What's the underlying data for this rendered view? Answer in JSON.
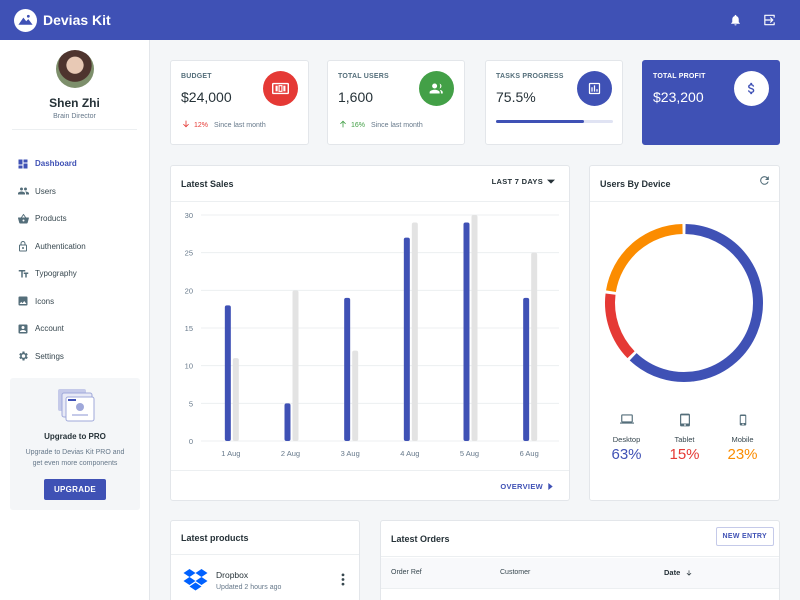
{
  "app": {
    "name": "Devias Kit"
  },
  "profile": {
    "name": "Shen Zhi",
    "role": "Brain Director"
  },
  "nav": [
    {
      "label": "Dashboard",
      "icon": "dashboard-icon",
      "active": true
    },
    {
      "label": "Users",
      "icon": "users-icon"
    },
    {
      "label": "Products",
      "icon": "basket-icon"
    },
    {
      "label": "Authentication",
      "icon": "lock-icon"
    },
    {
      "label": "Typography",
      "icon": "text-format-icon"
    },
    {
      "label": "Icons",
      "icon": "image-icon"
    },
    {
      "label": "Account",
      "icon": "account-box-icon"
    },
    {
      "label": "Settings",
      "icon": "gear-icon"
    }
  ],
  "upgrade": {
    "title": "Upgrade to PRO",
    "text": "Upgrade to Devias Kit PRO and get even more components",
    "button": "UPGRADE"
  },
  "kpis": {
    "budget": {
      "title": "BUDGET",
      "value": "$24,000",
      "diff": "12%",
      "caption": "Since last month",
      "color": "#e53935"
    },
    "users": {
      "title": "TOTAL USERS",
      "value": "1,600",
      "diff": "16%",
      "caption": "Since last month",
      "color": "#43a047"
    },
    "tasks": {
      "title": "TASKS PROGRESS",
      "value": "75.5%",
      "progress": 75.5,
      "color": "#3f51b5"
    },
    "profit": {
      "title": "TOTAL PROFIT",
      "value": "$23,200"
    }
  },
  "latest_sales": {
    "title": "Latest Sales",
    "range_label": "LAST 7 DAYS",
    "overview_label": "OVERVIEW"
  },
  "users_by_device": {
    "title": "Users By Device",
    "devices": [
      {
        "name": "Desktop",
        "value": "63%",
        "color": "#3f51b5",
        "icon": "laptop-icon"
      },
      {
        "name": "Tablet",
        "value": "15%",
        "color": "#e53935",
        "icon": "tablet-icon"
      },
      {
        "name": "Mobile",
        "value": "23%",
        "color": "#fb8c00",
        "icon": "phone-icon"
      }
    ]
  },
  "latest_products": {
    "title": "Latest products",
    "items": [
      {
        "name": "Dropbox",
        "updated": "Updated 2 hours ago"
      }
    ]
  },
  "latest_orders": {
    "title": "Latest Orders",
    "new_entry": "NEW ENTRY",
    "columns": [
      "Order Ref",
      "Customer",
      "Date"
    ]
  },
  "chart_data": [
    {
      "type": "bar",
      "categories": [
        "1 Aug",
        "2 Aug",
        "3 Aug",
        "4 Aug",
        "5 Aug",
        "6 Aug"
      ],
      "series": [
        {
          "values": [
            18,
            5,
            19,
            27,
            29,
            19
          ],
          "color": "#3f51b5"
        },
        {
          "values": [
            11,
            20,
            12,
            29,
            30,
            25
          ],
          "color": "#e3e3e3"
        }
      ],
      "ylim": [
        0,
        30
      ],
      "yticks": [
        0,
        5,
        10,
        15,
        20,
        25,
        30
      ],
      "grid": true
    },
    {
      "type": "pie",
      "variant": "doughnut",
      "labels": [
        "Desktop",
        "Tablet",
        "Mobile"
      ],
      "values": [
        63,
        15,
        23
      ],
      "colors": [
        "#3f51b5",
        "#e53935",
        "#fb8c00"
      ]
    }
  ]
}
